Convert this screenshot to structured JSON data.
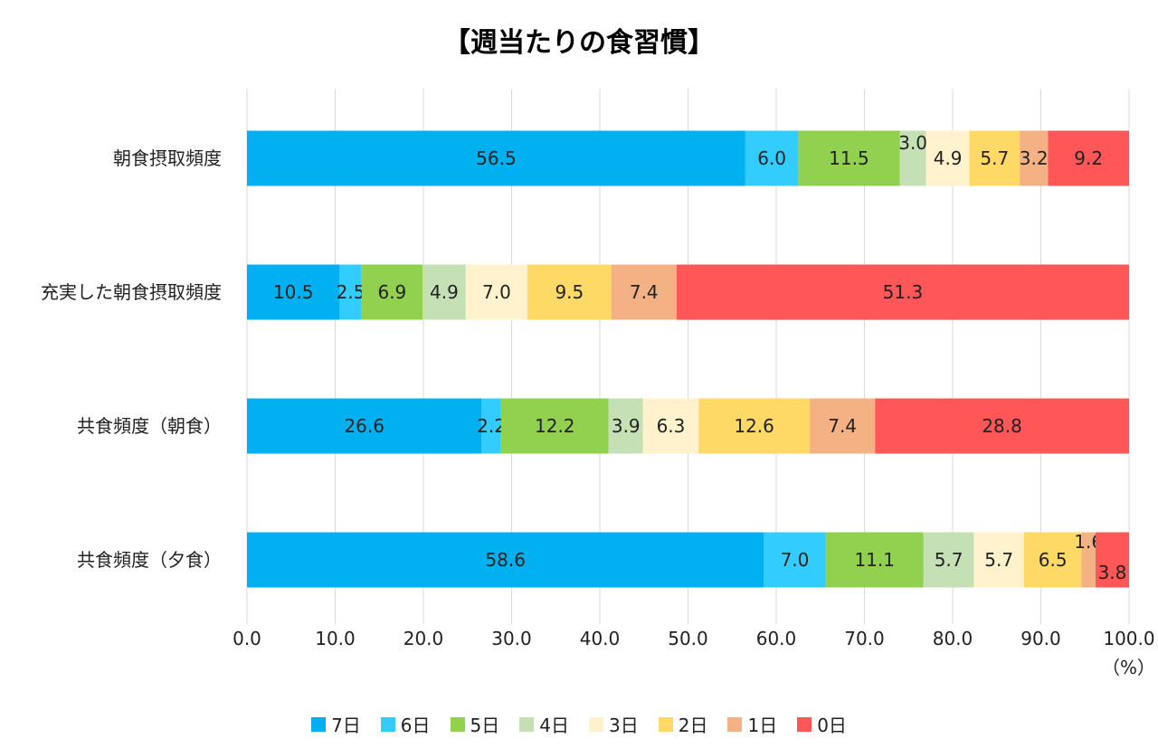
{
  "chart_data": {
    "type": "bar",
    "orientation": "horizontal",
    "stacked": true,
    "title": "【週当たりの食習慣】",
    "xlabel": "",
    "unit_label": "（%）",
    "xlim": [
      0,
      100
    ],
    "x_ticks": [
      "0.0",
      "10.0",
      "20.0",
      "30.0",
      "40.0",
      "50.0",
      "60.0",
      "70.0",
      "80.0",
      "90.0",
      "100.0"
    ],
    "grid": true,
    "legend_position": "bottom",
    "categories": [
      "朝食摂取頻度",
      "充実した朝食摂取頻度",
      "共食頻度（朝食）",
      "共食頻度（夕食）"
    ],
    "series": [
      {
        "name": "7日",
        "color": "#00B0F0",
        "values": [
          56.5,
          10.5,
          26.6,
          58.6
        ]
      },
      {
        "name": "6日",
        "color": "#33CCFF",
        "values": [
          6.0,
          2.5,
          2.2,
          7.0
        ]
      },
      {
        "name": "5日",
        "color": "#92D050",
        "values": [
          11.5,
          6.9,
          12.2,
          11.1
        ]
      },
      {
        "name": "4日",
        "color": "#C5E0B4",
        "values": [
          3.0,
          4.9,
          3.9,
          5.7
        ]
      },
      {
        "name": "3日",
        "color": "#FFF2CC",
        "values": [
          4.9,
          7.0,
          6.3,
          5.7
        ]
      },
      {
        "name": "2日",
        "color": "#FFD966",
        "values": [
          5.7,
          9.5,
          12.6,
          6.5
        ]
      },
      {
        "name": "1日",
        "color": "#F4B183",
        "values": [
          3.2,
          7.4,
          7.4,
          1.6
        ]
      },
      {
        "name": "0日",
        "color": "#FF5757",
        "values": [
          9.2,
          51.3,
          28.8,
          3.8
        ]
      }
    ]
  }
}
